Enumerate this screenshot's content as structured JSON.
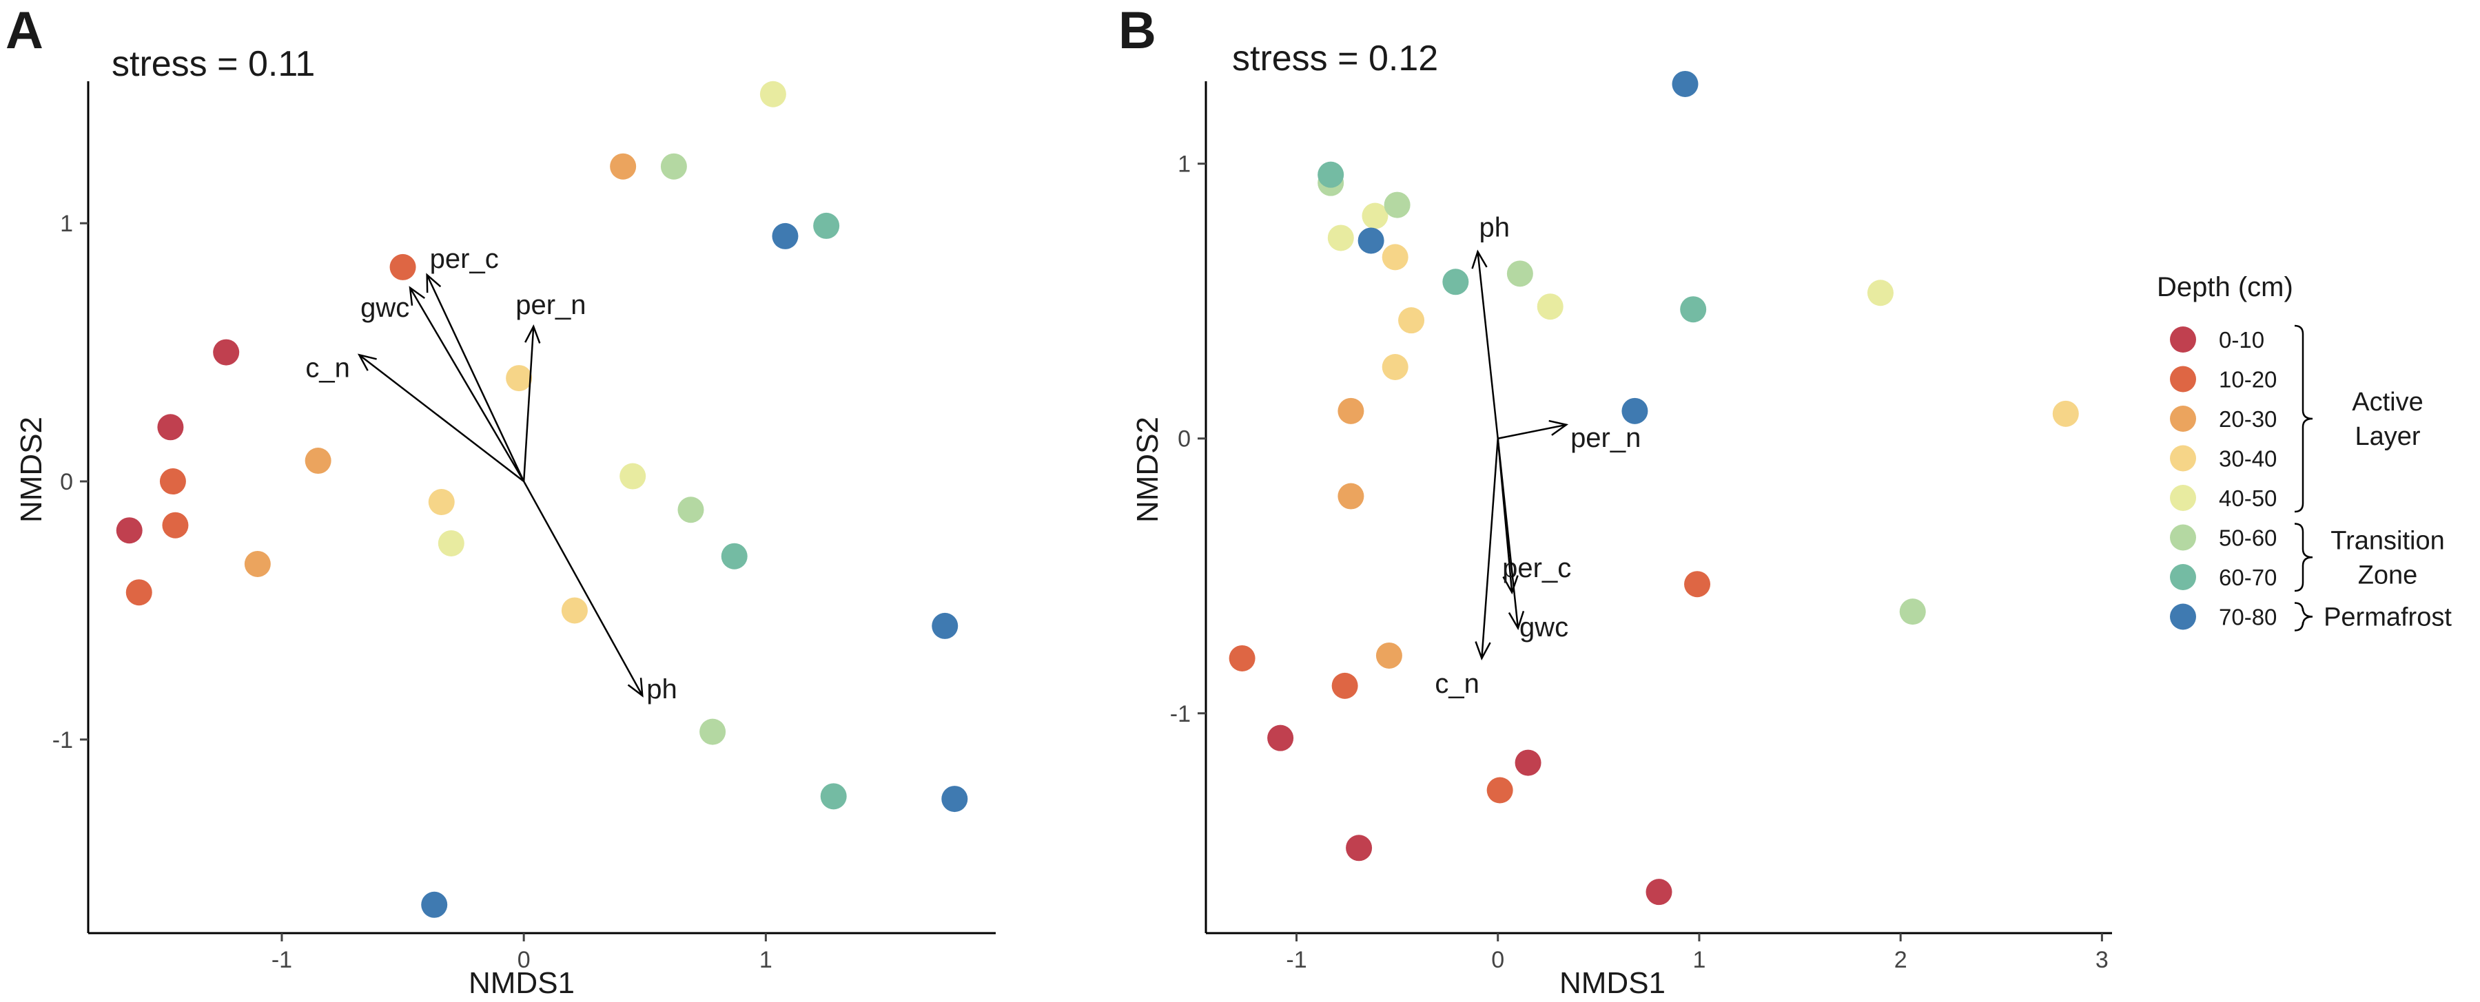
{
  "chart_data": [
    {
      "type": "scatter",
      "panel": "A",
      "stress": "stress = 0.11",
      "xlabel": "NMDS1",
      "ylabel": "NMDS2",
      "xlim": [
        -1.8,
        1.95
      ],
      "ylim": [
        -1.75,
        1.55
      ],
      "xticks": [
        -1,
        0,
        1
      ],
      "yticks": [
        -1,
        0,
        1
      ],
      "points": [
        {
          "x": -1.63,
          "y": -0.19,
          "depth": "0-10"
        },
        {
          "x": -1.46,
          "y": 0.21,
          "depth": "0-10"
        },
        {
          "x": -1.23,
          "y": 0.5,
          "depth": "0-10"
        },
        {
          "x": -1.59,
          "y": -0.43,
          "depth": "10-20"
        },
        {
          "x": -1.45,
          "y": 0.0,
          "depth": "10-20"
        },
        {
          "x": -1.44,
          "y": -0.17,
          "depth": "10-20"
        },
        {
          "x": -0.5,
          "y": 0.83,
          "depth": "10-20"
        },
        {
          "x": -1.1,
          "y": -0.32,
          "depth": "20-30"
        },
        {
          "x": -0.85,
          "y": 0.08,
          "depth": "20-30"
        },
        {
          "x": 0.41,
          "y": 1.22,
          "depth": "20-30"
        },
        {
          "x": -0.34,
          "y": -0.08,
          "depth": "30-40"
        },
        {
          "x": -0.02,
          "y": 0.4,
          "depth": "30-40"
        },
        {
          "x": 0.21,
          "y": -0.5,
          "depth": "30-40"
        },
        {
          "x": -0.3,
          "y": -0.24,
          "depth": "40-50"
        },
        {
          "x": 0.45,
          "y": 0.02,
          "depth": "40-50"
        },
        {
          "x": 1.03,
          "y": 1.5,
          "depth": "40-50"
        },
        {
          "x": 0.62,
          "y": 1.22,
          "depth": "50-60"
        },
        {
          "x": 0.69,
          "y": -0.11,
          "depth": "50-60"
        },
        {
          "x": 0.78,
          "y": -0.97,
          "depth": "50-60"
        },
        {
          "x": 0.87,
          "y": -0.29,
          "depth": "60-70"
        },
        {
          "x": 1.25,
          "y": 0.99,
          "depth": "60-70"
        },
        {
          "x": 1.28,
          "y": -1.22,
          "depth": "60-70"
        },
        {
          "x": -0.37,
          "y": -1.64,
          "depth": "70-80"
        },
        {
          "x": 1.08,
          "y": 0.95,
          "depth": "70-80"
        },
        {
          "x": 1.74,
          "y": -0.56,
          "depth": "70-80"
        },
        {
          "x": 1.78,
          "y": -1.23,
          "depth": "70-80"
        }
      ],
      "vectors": [
        {
          "name": "per_c",
          "x": -0.4,
          "y": 0.8
        },
        {
          "name": "gwc",
          "x": -0.47,
          "y": 0.75
        },
        {
          "name": "per_n",
          "x": 0.04,
          "y": 0.6
        },
        {
          "name": "c_n",
          "x": -0.68,
          "y": 0.49
        },
        {
          "name": "ph",
          "x": 0.49,
          "y": -0.83
        }
      ]
    },
    {
      "type": "scatter",
      "panel": "B",
      "stress": "stress = 0.12",
      "xlabel": "NMDS1",
      "ylabel": "NMDS2",
      "xlim": [
        -1.45,
        3.05
      ],
      "ylim": [
        -1.8,
        1.3
      ],
      "xticks": [
        -1,
        0,
        1,
        2,
        3
      ],
      "yticks": [
        -1,
        0,
        1
      ],
      "points": [
        {
          "x": -1.08,
          "y": -1.09,
          "depth": "0-10"
        },
        {
          "x": -0.69,
          "y": -1.49,
          "depth": "0-10"
        },
        {
          "x": 0.15,
          "y": -1.18,
          "depth": "0-10"
        },
        {
          "x": 0.8,
          "y": -1.65,
          "depth": "0-10"
        },
        {
          "x": -1.27,
          "y": -0.8,
          "depth": "10-20"
        },
        {
          "x": -0.76,
          "y": -0.9,
          "depth": "10-20"
        },
        {
          "x": 0.01,
          "y": -1.28,
          "depth": "10-20"
        },
        {
          "x": 0.99,
          "y": -0.53,
          "depth": "10-20"
        },
        {
          "x": -0.73,
          "y": 0.1,
          "depth": "20-30"
        },
        {
          "x": -0.73,
          "y": -0.21,
          "depth": "20-30"
        },
        {
          "x": -0.54,
          "y": -0.79,
          "depth": "20-30"
        },
        {
          "x": -0.51,
          "y": 0.66,
          "depth": "30-40"
        },
        {
          "x": -0.51,
          "y": 0.26,
          "depth": "30-40"
        },
        {
          "x": -0.43,
          "y": 0.43,
          "depth": "30-40"
        },
        {
          "x": 2.82,
          "y": 0.09,
          "depth": "30-40"
        },
        {
          "x": -0.78,
          "y": 0.73,
          "depth": "40-50"
        },
        {
          "x": -0.61,
          "y": 0.81,
          "depth": "40-50"
        },
        {
          "x": 0.26,
          "y": 0.48,
          "depth": "40-50"
        },
        {
          "x": 1.9,
          "y": 0.53,
          "depth": "40-50"
        },
        {
          "x": -0.83,
          "y": 0.93,
          "depth": "50-60"
        },
        {
          "x": -0.5,
          "y": 0.85,
          "depth": "50-60"
        },
        {
          "x": 0.11,
          "y": 0.6,
          "depth": "50-60"
        },
        {
          "x": 2.06,
          "y": -0.63,
          "depth": "50-60"
        },
        {
          "x": -0.83,
          "y": 0.96,
          "depth": "60-70"
        },
        {
          "x": -0.21,
          "y": 0.57,
          "depth": "60-70"
        },
        {
          "x": 0.97,
          "y": 0.47,
          "depth": "60-70"
        },
        {
          "x": -0.63,
          "y": 0.72,
          "depth": "70-80"
        },
        {
          "x": 0.68,
          "y": 0.1,
          "depth": "70-80"
        },
        {
          "x": 0.93,
          "y": 1.29,
          "depth": "70-80"
        }
      ],
      "vectors": [
        {
          "name": "ph",
          "x": -0.1,
          "y": 0.68
        },
        {
          "name": "per_n",
          "x": 0.34,
          "y": 0.05
        },
        {
          "name": "per_c",
          "x": 0.07,
          "y": -0.56
        },
        {
          "name": "gwc",
          "x": 0.1,
          "y": -0.69
        },
        {
          "name": "c_n",
          "x": -0.08,
          "y": -0.8
        }
      ]
    }
  ],
  "legend": {
    "title": "Depth (cm)",
    "items": [
      {
        "label": "0-10",
        "color": "#c0404f"
      },
      {
        "label": "10-20",
        "color": "#de6644"
      },
      {
        "label": "20-30",
        "color": "#eba45e"
      },
      {
        "label": "30-40",
        "color": "#f6d588"
      },
      {
        "label": "40-50",
        "color": "#e8eba0"
      },
      {
        "label": "50-60",
        "color": "#b4d8a2"
      },
      {
        "label": "60-70",
        "color": "#74bba3"
      },
      {
        "label": "70-80",
        "color": "#3f7ab1"
      }
    ],
    "groups": [
      {
        "lines": [
          "Active",
          "Layer"
        ],
        "from": 0,
        "to": 4
      },
      {
        "lines": [
          "Transition",
          "Zone"
        ],
        "from": 5,
        "to": 6
      },
      {
        "lines": [
          "Permafrost"
        ],
        "from": 7,
        "to": 7
      }
    ]
  }
}
